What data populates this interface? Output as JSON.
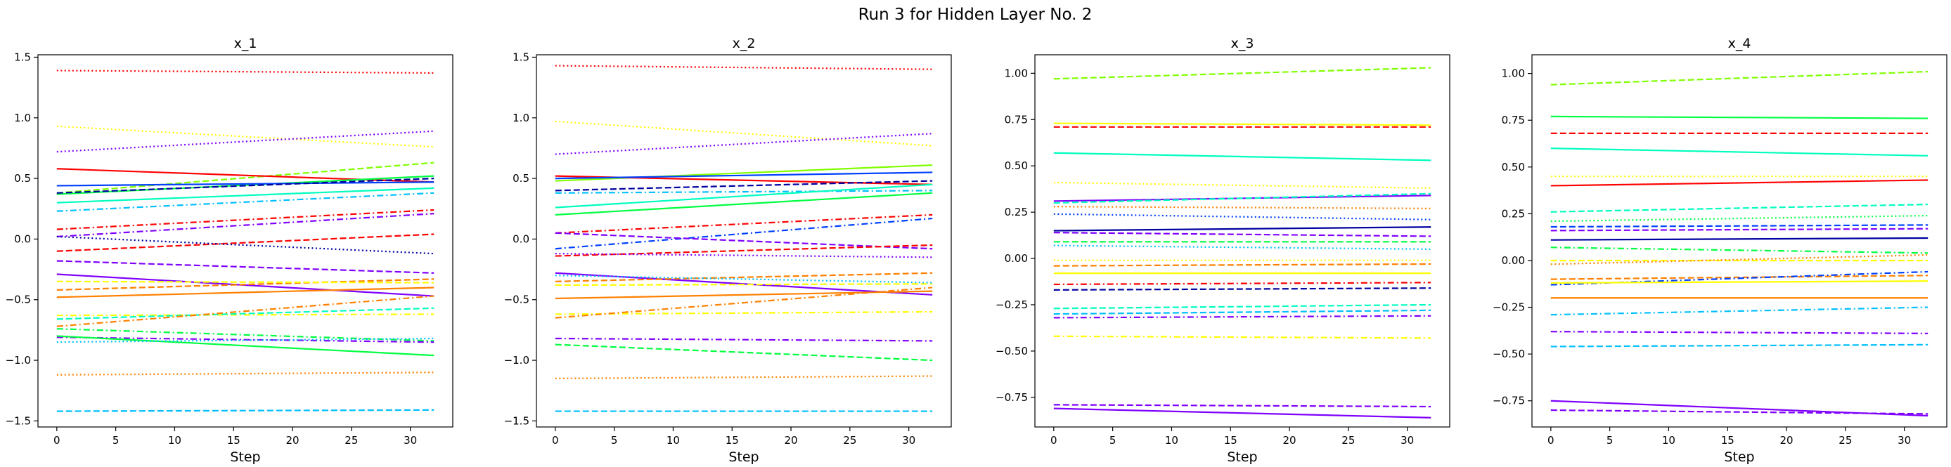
{
  "title": "Run 3 for Hidden Layer No. 2",
  "colors": [
    "#ff0000",
    "#ff8000",
    "#ffff00",
    "#80ff00",
    "#00ff40",
    "#00ffbf",
    "#00bfff",
    "#0040ff",
    "#0000a0",
    "#8000ff"
  ],
  "chart_data": [
    {
      "type": "line",
      "title": "x_1",
      "xlabel": "Step",
      "ylabel": "",
      "xlim": [
        -1.6,
        33.6
      ],
      "ylim": [
        -1.55,
        1.52
      ],
      "xticks": [
        0,
        5,
        10,
        15,
        20,
        25,
        30
      ],
      "yticks": [
        -1.5,
        -1.0,
        -0.5,
        0.0,
        0.5,
        1.0,
        1.5
      ],
      "ytick_labels": [
        "−1.5",
        "−1.0",
        "−0.5",
        "0.0",
        "0.5",
        "1.0",
        "1.5"
      ],
      "x_range": [
        0,
        32
      ],
      "series": [
        {
          "color": "#ff0000",
          "dash": "dotted",
          "y_start": 1.39,
          "y_end": 1.37
        },
        {
          "color": "#ffff00",
          "dash": "dotted",
          "y_start": 0.93,
          "y_end": 0.76
        },
        {
          "color": "#8000ff",
          "dash": "dotted",
          "y_start": 0.72,
          "y_end": 0.89
        },
        {
          "color": "#80ff00",
          "dash": "dashed",
          "y_start": 0.38,
          "y_end": 0.63
        },
        {
          "color": "#ff0000",
          "dash": "solid",
          "y_start": 0.58,
          "y_end": 0.47
        },
        {
          "color": "#00ff40",
          "dash": "solid",
          "y_start": 0.37,
          "y_end": 0.52
        },
        {
          "color": "#0040ff",
          "dash": "solid",
          "y_start": 0.44,
          "y_end": 0.47
        },
        {
          "color": "#0000a0",
          "dash": "dashed",
          "y_start": 0.38,
          "y_end": 0.5
        },
        {
          "color": "#00ffbf",
          "dash": "solid",
          "y_start": 0.3,
          "y_end": 0.42
        },
        {
          "color": "#00bfff",
          "dash": "dashdot",
          "y_start": 0.23,
          "y_end": 0.38
        },
        {
          "color": "#ff0000",
          "dash": "dashdot",
          "y_start": 0.08,
          "y_end": 0.24
        },
        {
          "color": "#8000ff",
          "dash": "dashdot",
          "y_start": 0.02,
          "y_end": 0.21
        },
        {
          "color": "#ff0000",
          "dash": "dashed",
          "y_start": -0.1,
          "y_end": 0.04
        },
        {
          "color": "#0000a0",
          "dash": "dotted",
          "y_start": 0.02,
          "y_end": -0.12
        },
        {
          "color": "#8000ff",
          "dash": "dashed",
          "y_start": -0.18,
          "y_end": -0.28
        },
        {
          "color": "#8000ff",
          "dash": "solid",
          "y_start": -0.29,
          "y_end": -0.47
        },
        {
          "color": "#ff8000",
          "dash": "dashed",
          "y_start": -0.42,
          "y_end": -0.33
        },
        {
          "color": "#ffff00",
          "dash": "dashed",
          "y_start": -0.35,
          "y_end": -0.36
        },
        {
          "color": "#ff8000",
          "dash": "solid",
          "y_start": -0.48,
          "y_end": -0.4
        },
        {
          "color": "#ffff00",
          "dash": "dashdot",
          "y_start": -0.63,
          "y_end": -0.62
        },
        {
          "color": "#00ffbf",
          "dash": "dashed",
          "y_start": -0.66,
          "y_end": -0.57
        },
        {
          "color": "#ff8000",
          "dash": "dashdot",
          "y_start": -0.72,
          "y_end": -0.47
        },
        {
          "color": "#00ff40",
          "dash": "dashdot",
          "y_start": -0.74,
          "y_end": -0.84
        },
        {
          "color": "#8000ff",
          "dash": "dashdot",
          "y_start": -0.81,
          "y_end": -0.85
        },
        {
          "color": "#00ff40",
          "dash": "solid",
          "y_start": -0.8,
          "y_end": -0.96
        },
        {
          "color": "#ff8000",
          "dash": "dotted",
          "y_start": -1.12,
          "y_end": -1.1
        },
        {
          "color": "#00bfff",
          "dash": "dashed",
          "y_start": -1.42,
          "y_end": -1.41
        },
        {
          "color": "#00bfff",
          "dash": "dotted",
          "y_start": -0.85,
          "y_end": -0.82
        }
      ]
    },
    {
      "type": "line",
      "title": "x_2",
      "xlabel": "Step",
      "ylabel": "",
      "xlim": [
        -1.6,
        33.6
      ],
      "ylim": [
        -1.55,
        1.52
      ],
      "xticks": [
        0,
        5,
        10,
        15,
        20,
        25,
        30
      ],
      "yticks": [
        -1.5,
        -1.0,
        -0.5,
        0.0,
        0.5,
        1.0,
        1.5
      ],
      "ytick_labels": [
        "−1.5",
        "−1.0",
        "−0.5",
        "0.0",
        "0.5",
        "1.0",
        "1.5"
      ],
      "x_range": [
        0,
        32
      ],
      "series": [
        {
          "color": "#ff0000",
          "dash": "dotted",
          "y_start": 1.43,
          "y_end": 1.4
        },
        {
          "color": "#ffff00",
          "dash": "dotted",
          "y_start": 0.97,
          "y_end": 0.77
        },
        {
          "color": "#8000ff",
          "dash": "dotted",
          "y_start": 0.7,
          "y_end": 0.87
        },
        {
          "color": "#80ff00",
          "dash": "solid",
          "y_start": 0.48,
          "y_end": 0.61
        },
        {
          "color": "#ff0000",
          "dash": "solid",
          "y_start": 0.52,
          "y_end": 0.45
        },
        {
          "color": "#0040ff",
          "dash": "solid",
          "y_start": 0.5,
          "y_end": 0.55
        },
        {
          "color": "#0000a0",
          "dash": "dashed",
          "y_start": 0.4,
          "y_end": 0.48
        },
        {
          "color": "#00bfff",
          "dash": "dashdot",
          "y_start": 0.38,
          "y_end": 0.4
        },
        {
          "color": "#00ffbf",
          "dash": "solid",
          "y_start": 0.26,
          "y_end": 0.45
        },
        {
          "color": "#00ff40",
          "dash": "solid",
          "y_start": 0.2,
          "y_end": 0.38
        },
        {
          "color": "#ff0000",
          "dash": "dashdot",
          "y_start": 0.05,
          "y_end": 0.2
        },
        {
          "color": "#0040ff",
          "dash": "dashdot",
          "y_start": -0.08,
          "y_end": 0.17
        },
        {
          "color": "#8000ff",
          "dash": "dashed",
          "y_start": 0.05,
          "y_end": -0.08
        },
        {
          "color": "#ff0000",
          "dash": "dashed",
          "y_start": -0.14,
          "y_end": -0.05
        },
        {
          "color": "#8000ff",
          "dash": "dotted",
          "y_start": -0.12,
          "y_end": -0.15
        },
        {
          "color": "#8000ff",
          "dash": "solid",
          "y_start": -0.28,
          "y_end": -0.46
        },
        {
          "color": "#ff8000",
          "dash": "dashed",
          "y_start": -0.35,
          "y_end": -0.28
        },
        {
          "color": "#ffff00",
          "dash": "dashed",
          "y_start": -0.38,
          "y_end": -0.37
        },
        {
          "color": "#ff8000",
          "dash": "solid",
          "y_start": -0.49,
          "y_end": -0.43
        },
        {
          "color": "#ffff00",
          "dash": "dashdot",
          "y_start": -0.62,
          "y_end": -0.6
        },
        {
          "color": "#ff8000",
          "dash": "dashdot",
          "y_start": -0.65,
          "y_end": -0.4
        },
        {
          "color": "#8000ff",
          "dash": "dashdot",
          "y_start": -0.82,
          "y_end": -0.84
        },
        {
          "color": "#00ff40",
          "dash": "dashed",
          "y_start": -0.87,
          "y_end": -1.0
        },
        {
          "color": "#00bfff",
          "dash": "dotted",
          "y_start": -0.3,
          "y_end": -0.36
        },
        {
          "color": "#ff8000",
          "dash": "dotted",
          "y_start": -1.15,
          "y_end": -1.13
        },
        {
          "color": "#00bfff",
          "dash": "dashed",
          "y_start": -1.42,
          "y_end": -1.42
        }
      ]
    },
    {
      "type": "line",
      "title": "x_3",
      "xlabel": "Step",
      "ylabel": "",
      "xlim": [
        -1.6,
        33.6
      ],
      "ylim": [
        -0.91,
        1.1
      ],
      "xticks": [
        0,
        5,
        10,
        15,
        20,
        25,
        30
      ],
      "yticks": [
        -0.75,
        -0.5,
        -0.25,
        0.0,
        0.25,
        0.5,
        0.75,
        1.0
      ],
      "ytick_labels": [
        "−0.75",
        "−0.50",
        "−0.25",
        "0.00",
        "0.25",
        "0.50",
        "0.75",
        "1.00"
      ],
      "x_range": [
        0,
        32
      ],
      "series": [
        {
          "color": "#80ff00",
          "dash": "dashed",
          "y_start": 0.97,
          "y_end": 1.03
        },
        {
          "color": "#ffff00",
          "dash": "solid",
          "y_start": 0.73,
          "y_end": 0.72
        },
        {
          "color": "#ff0000",
          "dash": "dashed",
          "y_start": 0.71,
          "y_end": 0.71
        },
        {
          "color": "#00ffbf",
          "dash": "solid",
          "y_start": 0.57,
          "y_end": 0.53
        },
        {
          "color": "#ffff00",
          "dash": "dotted",
          "y_start": 0.41,
          "y_end": 0.38
        },
        {
          "color": "#8000ff",
          "dash": "solid",
          "y_start": 0.31,
          "y_end": 0.34
        },
        {
          "color": "#00ffbf",
          "dash": "dashed",
          "y_start": 0.3,
          "y_end": 0.35
        },
        {
          "color": "#ff8000",
          "dash": "dotted",
          "y_start": 0.28,
          "y_end": 0.27
        },
        {
          "color": "#0040ff",
          "dash": "dotted",
          "y_start": 0.24,
          "y_end": 0.21
        },
        {
          "color": "#0000a0",
          "dash": "solid",
          "y_start": 0.15,
          "y_end": 0.17
        },
        {
          "color": "#8000ff",
          "dash": "dashed",
          "y_start": 0.14,
          "y_end": 0.12
        },
        {
          "color": "#00ff40",
          "dash": "dashed",
          "y_start": 0.09,
          "y_end": 0.09
        },
        {
          "color": "#00bfff",
          "dash": "dotted",
          "y_start": 0.07,
          "y_end": 0.05
        },
        {
          "color": "#ffff00",
          "dash": "dotted",
          "y_start": -0.01,
          "y_end": -0.01
        },
        {
          "color": "#ff8000",
          "dash": "dashed",
          "y_start": -0.04,
          "y_end": -0.03
        },
        {
          "color": "#ffff00",
          "dash": "solid",
          "y_start": -0.08,
          "y_end": -0.08
        },
        {
          "color": "#ff0000",
          "dash": "dashdot",
          "y_start": -0.14,
          "y_end": -0.13
        },
        {
          "color": "#0000a0",
          "dash": "dashed",
          "y_start": -0.17,
          "y_end": -0.16
        },
        {
          "color": "#00ffbf",
          "dash": "dashed",
          "y_start": -0.27,
          "y_end": -0.25
        },
        {
          "color": "#00bfff",
          "dash": "dashed",
          "y_start": -0.3,
          "y_end": -0.28
        },
        {
          "color": "#8000ff",
          "dash": "dashdot",
          "y_start": -0.32,
          "y_end": -0.31
        },
        {
          "color": "#ffff00",
          "dash": "dashdot",
          "y_start": -0.42,
          "y_end": -0.43
        },
        {
          "color": "#8000ff",
          "dash": "dashed",
          "y_start": -0.79,
          "y_end": -0.8
        },
        {
          "color": "#8000ff",
          "dash": "solid",
          "y_start": -0.81,
          "y_end": -0.86
        }
      ]
    },
    {
      "type": "line",
      "title": "x_4",
      "xlabel": "Step",
      "ylabel": "",
      "xlim": [
        -1.6,
        33.6
      ],
      "ylim": [
        -0.89,
        1.1
      ],
      "xticks": [
        0,
        5,
        10,
        15,
        20,
        25,
        30
      ],
      "yticks": [
        -0.75,
        -0.5,
        -0.25,
        0.0,
        0.25,
        0.5,
        0.75,
        1.0
      ],
      "ytick_labels": [
        "−0.75",
        "−0.50",
        "−0.25",
        "0.00",
        "0.25",
        "0.50",
        "0.75",
        "1.00"
      ],
      "x_range": [
        0,
        32
      ],
      "series": [
        {
          "color": "#80ff00",
          "dash": "dashed",
          "y_start": 0.94,
          "y_end": 1.01
        },
        {
          "color": "#00ff40",
          "dash": "solid",
          "y_start": 0.77,
          "y_end": 0.76
        },
        {
          "color": "#ff0000",
          "dash": "dashed",
          "y_start": 0.68,
          "y_end": 0.68
        },
        {
          "color": "#00ffbf",
          "dash": "solid",
          "y_start": 0.6,
          "y_end": 0.56
        },
        {
          "color": "#ffff00",
          "dash": "dotted",
          "y_start": 0.45,
          "y_end": 0.45
        },
        {
          "color": "#ff0000",
          "dash": "solid",
          "y_start": 0.4,
          "y_end": 0.43
        },
        {
          "color": "#00ffbf",
          "dash": "dashed",
          "y_start": 0.26,
          "y_end": 0.3
        },
        {
          "color": "#0040ff",
          "dash": "dashed",
          "y_start": 0.18,
          "y_end": 0.19
        },
        {
          "color": "#8000ff",
          "dash": "dashed",
          "y_start": 0.16,
          "y_end": 0.17
        },
        {
          "color": "#0000a0",
          "dash": "solid",
          "y_start": 0.11,
          "y_end": 0.12
        },
        {
          "color": "#00ff40",
          "dash": "dashdot",
          "y_start": 0.07,
          "y_end": 0.04
        },
        {
          "color": "#ffff00",
          "dash": "dashed",
          "y_start": 0.0,
          "y_end": 0.0
        },
        {
          "color": "#ff8000",
          "dash": "dashed",
          "y_start": -0.1,
          "y_end": -0.08
        },
        {
          "color": "#0040ff",
          "dash": "dashdot",
          "y_start": -0.13,
          "y_end": -0.06
        },
        {
          "color": "#ffff00",
          "dash": "solid",
          "y_start": -0.12,
          "y_end": -0.11
        },
        {
          "color": "#ff8000",
          "dash": "solid",
          "y_start": -0.2,
          "y_end": -0.2
        },
        {
          "color": "#00bfff",
          "dash": "dashdot",
          "y_start": -0.29,
          "y_end": -0.25
        },
        {
          "color": "#8000ff",
          "dash": "dashdot",
          "y_start": -0.38,
          "y_end": -0.39
        },
        {
          "color": "#00bfff",
          "dash": "dashed",
          "y_start": -0.46,
          "y_end": -0.45
        },
        {
          "color": "#8000ff",
          "dash": "solid",
          "y_start": -0.75,
          "y_end": -0.83
        },
        {
          "color": "#8000ff",
          "dash": "dashed",
          "y_start": -0.8,
          "y_end": -0.82
        },
        {
          "color": "#00ff40",
          "dash": "dotted",
          "y_start": 0.21,
          "y_end": 0.24
        },
        {
          "color": "#ff8000",
          "dash": "dotted",
          "y_start": -0.02,
          "y_end": 0.03
        }
      ]
    }
  ]
}
